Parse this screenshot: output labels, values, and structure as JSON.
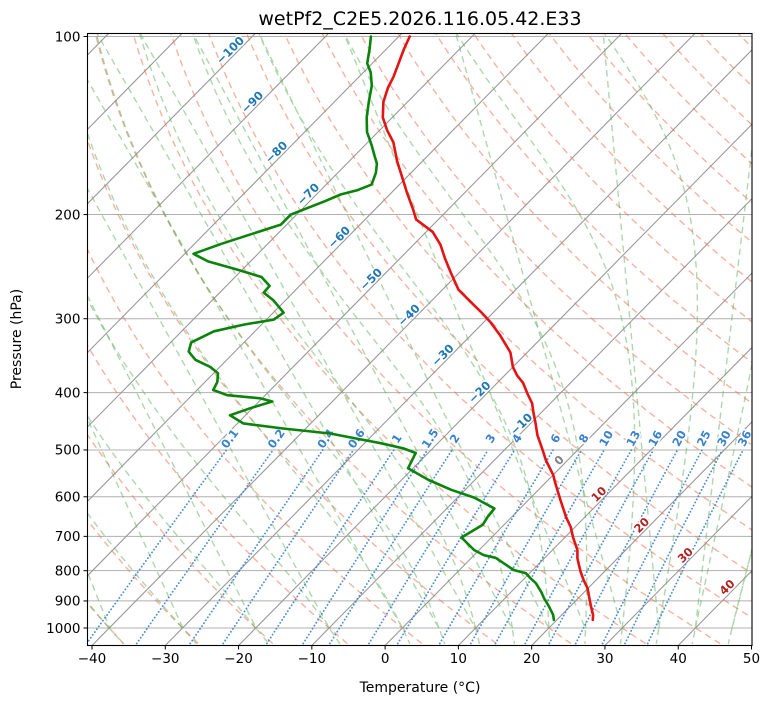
{
  "title": "wetPf2_C2E5.2026.116.05.42.E33",
  "axes": {
    "x_label": "Temperature (°C)",
    "y_label": "Pressure (hPa)",
    "x_ticks": [
      -40,
      -30,
      -20,
      -10,
      0,
      10,
      20,
      30,
      40,
      50
    ],
    "y_ticks": [
      100,
      200,
      300,
      400,
      500,
      600,
      700,
      800,
      900,
      1000
    ]
  },
  "chart_data": {
    "type": "line",
    "subtype": "skew-t-log-p-sounding",
    "title": "wetPf2_C2E5.2026.116.05.42.E33",
    "xlabel": "Temperature (°C)",
    "ylabel": "Pressure (hPa)",
    "x_range_degc": [
      -40,
      50
    ],
    "pressure_range_hpa": [
      100,
      1060
    ],
    "skew_rotation_deg": 45,
    "grid": true,
    "series": [
      {
        "name": "temperature",
        "color": "#e31414",
        "units": "pressure_hpa, temperature_degc",
        "points": [
          [
            100,
            -78.5
          ],
          [
            105,
            -77.6
          ],
          [
            117,
            -75.3
          ],
          [
            122,
            -74.6
          ],
          [
            129,
            -73.3
          ],
          [
            137,
            -71.3
          ],
          [
            144,
            -69.0
          ],
          [
            151,
            -66.5
          ],
          [
            162,
            -63.6
          ],
          [
            173,
            -60.6
          ],
          [
            184,
            -57.8
          ],
          [
            196,
            -54.8
          ],
          [
            204,
            -53.0
          ],
          [
            214,
            -49.1
          ],
          [
            225,
            -46.3
          ],
          [
            237,
            -43.9
          ],
          [
            251,
            -41.1
          ],
          [
            268,
            -37.8
          ],
          [
            281,
            -34.5
          ],
          [
            292,
            -31.8
          ],
          [
            304,
            -29.1
          ],
          [
            320,
            -26.0
          ],
          [
            342,
            -22.3
          ],
          [
            362,
            -20.0
          ],
          [
            374,
            -18.3
          ],
          [
            385,
            -16.5
          ],
          [
            401,
            -14.5
          ],
          [
            417,
            -12.5
          ],
          [
            433,
            -11.0
          ],
          [
            450,
            -9.4
          ],
          [
            472,
            -7.5
          ],
          [
            500,
            -4.8
          ],
          [
            520,
            -3.0
          ],
          [
            551,
            0.0
          ],
          [
            569,
            1.4
          ],
          [
            608,
            4.4
          ],
          [
            649,
            7.4
          ],
          [
            675,
            9.4
          ],
          [
            704,
            11.2
          ],
          [
            738,
            13.4
          ],
          [
            762,
            14.5
          ],
          [
            782,
            15.6
          ],
          [
            804,
            16.8
          ],
          [
            830,
            18.3
          ],
          [
            856,
            19.9
          ],
          [
            886,
            21.3
          ],
          [
            914,
            22.6
          ],
          [
            951,
            24.3
          ],
          [
            969,
            24.9
          ]
        ]
      },
      {
        "name": "dewpoint",
        "color": "#0b830b",
        "units": "pressure_hpa, temperature_degc",
        "points": [
          [
            100,
            -83.8
          ],
          [
            105,
            -82.3
          ],
          [
            111,
            -80.7
          ],
          [
            115,
            -79.0
          ],
          [
            121,
            -77.1
          ],
          [
            129,
            -75.3
          ],
          [
            137,
            -73.5
          ],
          [
            145,
            -71.5
          ],
          [
            153,
            -69.0
          ],
          [
            159,
            -67.3
          ],
          [
            164,
            -65.9
          ],
          [
            170,
            -64.8
          ],
          [
            178,
            -63.8
          ],
          [
            182,
            -65.0
          ],
          [
            185,
            -66.7
          ],
          [
            190,
            -68.0
          ],
          [
            194,
            -69.1
          ],
          [
            200,
            -70.8
          ],
          [
            208,
            -70.8
          ],
          [
            216,
            -73.6
          ],
          [
            224,
            -76.3
          ],
          [
            233,
            -78.8
          ],
          [
            240,
            -75.8
          ],
          [
            248,
            -70.6
          ],
          [
            255,
            -66.4
          ],
          [
            264,
            -64.1
          ],
          [
            271,
            -64.0
          ],
          [
            279,
            -61.7
          ],
          [
            287,
            -59.9
          ],
          [
            293,
            -58.6
          ],
          [
            301,
            -59.0
          ],
          [
            307,
            -62.4
          ],
          [
            315,
            -65.6
          ],
          [
            329,
            -67.2
          ],
          [
            341,
            -66.3
          ],
          [
            352,
            -64.3
          ],
          [
            362,
            -61.3
          ],
          [
            371,
            -59.4
          ],
          [
            384,
            -58.3
          ],
          [
            396,
            -57.8
          ],
          [
            404,
            -55.2
          ],
          [
            409,
            -50.3
          ],
          [
            414,
            -48.2
          ],
          [
            425,
            -50.3
          ],
          [
            437,
            -52.1
          ],
          [
            451,
            -49.2
          ],
          [
            460,
            -43.1
          ],
          [
            469,
            -36.0
          ],
          [
            478,
            -31.9
          ],
          [
            487,
            -27.8
          ],
          [
            497,
            -24.0
          ],
          [
            506,
            -21.7
          ],
          [
            537,
            -20.7
          ],
          [
            562,
            -16.3
          ],
          [
            584,
            -11.9
          ],
          [
            602,
            -7.7
          ],
          [
            628,
            -3.5
          ],
          [
            648,
            -3.3
          ],
          [
            669,
            -2.9
          ],
          [
            703,
            -4.1
          ],
          [
            738,
            -0.7
          ],
          [
            753,
            1.3
          ],
          [
            761,
            3.3
          ],
          [
            777,
            5.1
          ],
          [
            798,
            7.4
          ],
          [
            808,
            9.5
          ],
          [
            824,
            10.8
          ],
          [
            840,
            12.2
          ],
          [
            869,
            14.1
          ],
          [
            890,
            15.3
          ],
          [
            921,
            17.2
          ],
          [
            950,
            18.8
          ],
          [
            969,
            19.6
          ]
        ]
      }
    ],
    "isotherms": {
      "min_c": -120,
      "max_c": 50,
      "step_c": 10,
      "line_color": "#999999",
      "labeled_values": [
        -100,
        -90,
        -80,
        -70,
        -60,
        -50,
        -40,
        -30,
        -20,
        -10,
        0,
        10,
        20,
        30,
        40
      ],
      "label_color_negative": "#1f77b4",
      "label_color_zero": "#808080",
      "label_color_positive": "#b22222"
    },
    "dry_adiabats": {
      "theta_c_min": -40,
      "theta_c_max": 200,
      "step_c": 10,
      "color": "#ef7252",
      "style": "dashed"
    },
    "moist_adiabats": {
      "theta_w_c_values": [
        -40,
        -30,
        -20,
        -10,
        0,
        5,
        10,
        15,
        20,
        25,
        30,
        35,
        40,
        45,
        50,
        55,
        60,
        65,
        70,
        75,
        80,
        85,
        90,
        95,
        100,
        105,
        110,
        115,
        120,
        125
      ],
      "color": "#5db05d",
      "style": "dashed"
    },
    "mixing_ratio_lines": {
      "values_g_per_kg": [
        0.1,
        0.2,
        0.4,
        0.6,
        1,
        1.5,
        2,
        3,
        4,
        6,
        8,
        10,
        13,
        16,
        20,
        25,
        30,
        36
      ],
      "labels": [
        "0.1",
        "0.2",
        "0.4",
        "0.6",
        "1",
        "1.5",
        "2",
        "3",
        "4",
        "6",
        "8",
        "10",
        "13",
        "16",
        "20",
        "25",
        "30",
        "36"
      ],
      "color": "#3b82cc",
      "style": "dotted",
      "top_pressure_hpa": 500
    },
    "grid_color": "#b0b0b0",
    "legend": "none"
  }
}
